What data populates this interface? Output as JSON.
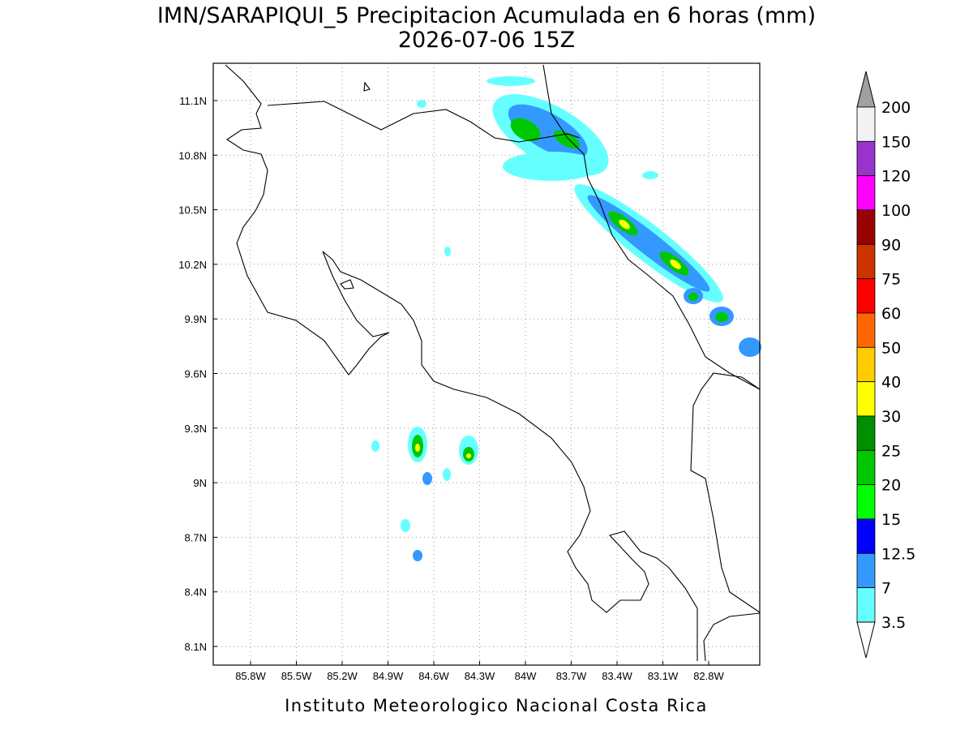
{
  "header": {
    "title": "IMN/SARAPIQUI_5 Precipitacion Acumulada en 6 horas (mm)",
    "subtitle": "2026-07-06 15Z"
  },
  "map": {
    "lon_labels": [
      "85.8W",
      "85.5W",
      "85.2W",
      "84.9W",
      "84.6W",
      "84.3W",
      "84W",
      "83.7W",
      "83.4W",
      "83.1W",
      "82.8W"
    ],
    "lat_labels": [
      "11.1N",
      "10.8N",
      "10.5N",
      "10.2N",
      "9.9N",
      "9.6N",
      "9.3N",
      "9N",
      "8.7N",
      "8.4N",
      "8.1N"
    ]
  },
  "colorbar": {
    "levels": [
      200,
      150,
      120,
      100,
      90,
      75,
      60,
      50,
      40,
      30,
      25,
      20,
      15,
      12.5,
      7,
      3.5
    ],
    "colors": [
      "#f2f2f2",
      "#9933cc",
      "#ff00ff",
      "#990000",
      "#cc3300",
      "#ff0000",
      "#ff6600",
      "#ffcc00",
      "#ffff00",
      "#008f00",
      "#00c800",
      "#00ff00",
      "#0000ff",
      "#3399ff",
      "#66ffff"
    ],
    "over_color": "#a0a0a0",
    "under_color": "#ffffff"
  },
  "footer": "Instituto Meteorologico Nacional Costa Rica"
}
